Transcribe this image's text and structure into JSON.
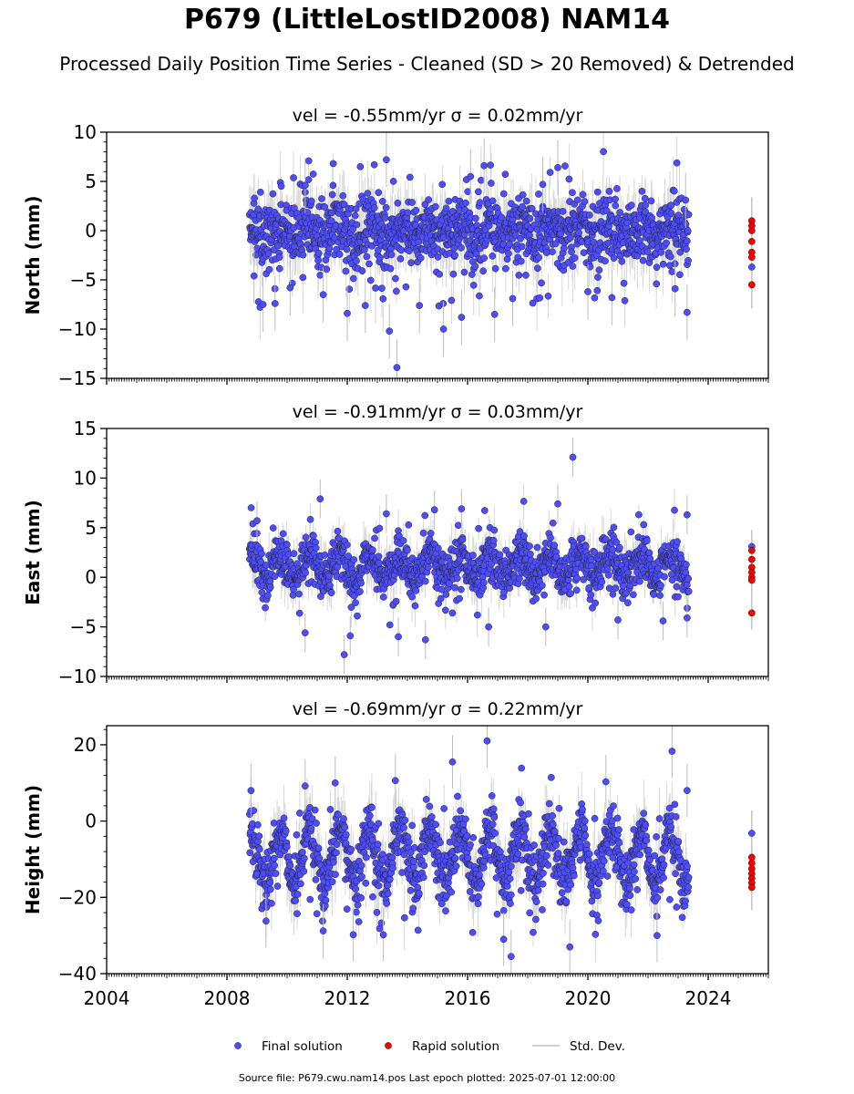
{
  "figure": {
    "title": "P679 (LittleLostID2008) NAM14",
    "subtitle": "Processed Daily Position Time Series - Cleaned (SD > 20 Removed) & Detrended",
    "footer": "Source file: P679.cwu.nam14.pos  Last epoch plotted: 2025-07-01 12:00:00"
  },
  "colors": {
    "final": "#4d4dff",
    "rapid": "#ff0000",
    "stddev": "#bdbdbd",
    "axis": "#000000"
  },
  "chart_data": [
    {
      "type": "scatter",
      "panel": "north",
      "title": "vel = -0.55mm/yr   σ = 0.02mm/yr",
      "ylabel": "North (mm)",
      "xlim": [
        2004.0,
        2026.0
      ],
      "ylim": [
        -15,
        10
      ],
      "yticks": [
        10,
        5,
        0,
        -5,
        -10,
        -15
      ],
      "ytick_labels": [
        "10",
        "5",
        "0",
        "−5",
        "−10",
        "−15"
      ],
      "x_range_final": [
        2008.75,
        2023.35
      ],
      "final_sample": [
        {
          "x": 2008.9,
          "y": -4.6
        },
        {
          "x": 2009.2,
          "y": -7.5
        },
        {
          "x": 2009.6,
          "y": -7.4
        },
        {
          "x": 2010.1,
          "y": -5.8
        },
        {
          "x": 2010.6,
          "y": 4.6
        },
        {
          "x": 2011.2,
          "y": -6.5
        },
        {
          "x": 2012.0,
          "y": -8.4
        },
        {
          "x": 2012.6,
          "y": -7.6
        },
        {
          "x": 2013.3,
          "y": 7.2
        },
        {
          "x": 2013.4,
          "y": -10.2
        },
        {
          "x": 2013.65,
          "y": -13.9
        },
        {
          "x": 2014.4,
          "y": -7.6
        },
        {
          "x": 2015.2,
          "y": -10.0
        },
        {
          "x": 2015.8,
          "y": -8.8
        },
        {
          "x": 2016.1,
          "y": 5.5
        },
        {
          "x": 2016.55,
          "y": 6.6
        },
        {
          "x": 2016.9,
          "y": -8.5
        },
        {
          "x": 2017.5,
          "y": -6.9
        },
        {
          "x": 2018.5,
          "y": 4.7
        },
        {
          "x": 2019.0,
          "y": 6.4
        },
        {
          "x": 2020.0,
          "y": -6.2
        },
        {
          "x": 2020.8,
          "y": -6.8
        },
        {
          "x": 2022.9,
          "y": -5.9
        },
        {
          "x": 2023.3,
          "y": -8.3
        },
        {
          "x": 2023.25,
          "y": 3.1
        }
      ],
      "rapid": [
        {
          "x": 2025.45,
          "y": 1.0
        },
        {
          "x": 2025.45,
          "y": 0.5
        },
        {
          "x": 2025.45,
          "y": 0.0
        },
        {
          "x": 2025.45,
          "y": -1.1
        },
        {
          "x": 2025.45,
          "y": -2.2
        },
        {
          "x": 2025.45,
          "y": -2.7
        },
        {
          "x": 2025.45,
          "y": -5.5
        }
      ],
      "rapid_final_point": {
        "x": 2025.45,
        "y": -3.7
      }
    },
    {
      "type": "scatter",
      "panel": "east",
      "title": "vel = -0.91mm/yr   σ = 0.03mm/yr",
      "ylabel": "East (mm)",
      "xlim": [
        2004.0,
        2026.0
      ],
      "ylim": [
        -10,
        15
      ],
      "yticks": [
        15,
        10,
        5,
        0,
        -5,
        -10
      ],
      "ytick_labels": [
        "15",
        "10",
        "5",
        "0",
        "−5",
        "−10"
      ],
      "x_range_final": [
        2008.75,
        2023.35
      ],
      "final_sample": [
        {
          "x": 2009.0,
          "y": 5.7
        },
        {
          "x": 2010.6,
          "y": -5.6
        },
        {
          "x": 2011.1,
          "y": 7.9
        },
        {
          "x": 2011.9,
          "y": -7.8
        },
        {
          "x": 2012.1,
          "y": -5.9
        },
        {
          "x": 2013.3,
          "y": 6.4
        },
        {
          "x": 2013.7,
          "y": -6.0
        },
        {
          "x": 2014.6,
          "y": -6.3
        },
        {
          "x": 2014.9,
          "y": 6.8
        },
        {
          "x": 2015.8,
          "y": 6.9
        },
        {
          "x": 2016.7,
          "y": -5.0
        },
        {
          "x": 2018.6,
          "y": -5.0
        },
        {
          "x": 2019.0,
          "y": 7.4
        },
        {
          "x": 2019.5,
          "y": 12.1
        },
        {
          "x": 2021.0,
          "y": -4.3
        },
        {
          "x": 2022.5,
          "y": -4.4
        },
        {
          "x": 2023.3,
          "y": 6.3
        },
        {
          "x": 2023.3,
          "y": -4.1
        }
      ],
      "rapid": [
        {
          "x": 2025.45,
          "y": 2.7
        },
        {
          "x": 2025.45,
          "y": 1.8
        },
        {
          "x": 2025.45,
          "y": 1.0
        },
        {
          "x": 2025.45,
          "y": 0.5
        },
        {
          "x": 2025.45,
          "y": 0.0
        },
        {
          "x": 2025.45,
          "y": -0.3
        },
        {
          "x": 2025.45,
          "y": -3.6
        }
      ],
      "rapid_final_point": {
        "x": 2025.45,
        "y": 3.1
      }
    },
    {
      "type": "scatter",
      "panel": "height",
      "title": "vel = -0.69mm/yr   σ = 0.22mm/yr",
      "ylabel": "Height (mm)",
      "xlabel_ticks": [
        "2004",
        "2008",
        "2012",
        "2016",
        "2020",
        "2024"
      ],
      "xticks": [
        2004,
        2008,
        2012,
        2016,
        2020,
        2024
      ],
      "xlim": [
        2004.0,
        2026.0
      ],
      "ylim": [
        -40,
        25
      ],
      "yticks": [
        20,
        0,
        -20,
        -40
      ],
      "ytick_labels": [
        "20",
        "0",
        "−20",
        "−40"
      ],
      "x_range_final": [
        2008.75,
        2023.35
      ],
      "final_sample": [
        {
          "x": 2008.8,
          "y": 8.0
        },
        {
          "x": 2009.3,
          "y": -26.2
        },
        {
          "x": 2010.6,
          "y": 9.2
        },
        {
          "x": 2011.2,
          "y": -28.8
        },
        {
          "x": 2011.6,
          "y": 10.0
        },
        {
          "x": 2012.2,
          "y": -29.8
        },
        {
          "x": 2013.2,
          "y": -29.8
        },
        {
          "x": 2013.6,
          "y": 10.6
        },
        {
          "x": 2015.5,
          "y": 15.5
        },
        {
          "x": 2016.65,
          "y": 21.0
        },
        {
          "x": 2017.2,
          "y": -31.0
        },
        {
          "x": 2017.45,
          "y": -35.5
        },
        {
          "x": 2019.4,
          "y": -33.0
        },
        {
          "x": 2020.6,
          "y": 10.3
        },
        {
          "x": 2022.8,
          "y": 18.3
        },
        {
          "x": 2022.3,
          "y": -30.0
        },
        {
          "x": 2023.3,
          "y": 8.0
        }
      ],
      "rapid": [
        {
          "x": 2025.45,
          "y": -9.5
        },
        {
          "x": 2025.45,
          "y": -11.0
        },
        {
          "x": 2025.45,
          "y": -12.5
        },
        {
          "x": 2025.45,
          "y": -13.8
        },
        {
          "x": 2025.45,
          "y": -15.0
        },
        {
          "x": 2025.45,
          "y": -16.2
        },
        {
          "x": 2025.45,
          "y": -17.4
        }
      ],
      "rapid_final_point": {
        "x": 2025.45,
        "y": -3.2
      }
    }
  ],
  "legend": {
    "placement": "bottom-center",
    "entries": [
      {
        "label": "Final solution",
        "marker": "final"
      },
      {
        "label": "Rapid solution",
        "marker": "rapid"
      },
      {
        "label": "Std. Dev.",
        "marker": "stddev"
      }
    ]
  }
}
